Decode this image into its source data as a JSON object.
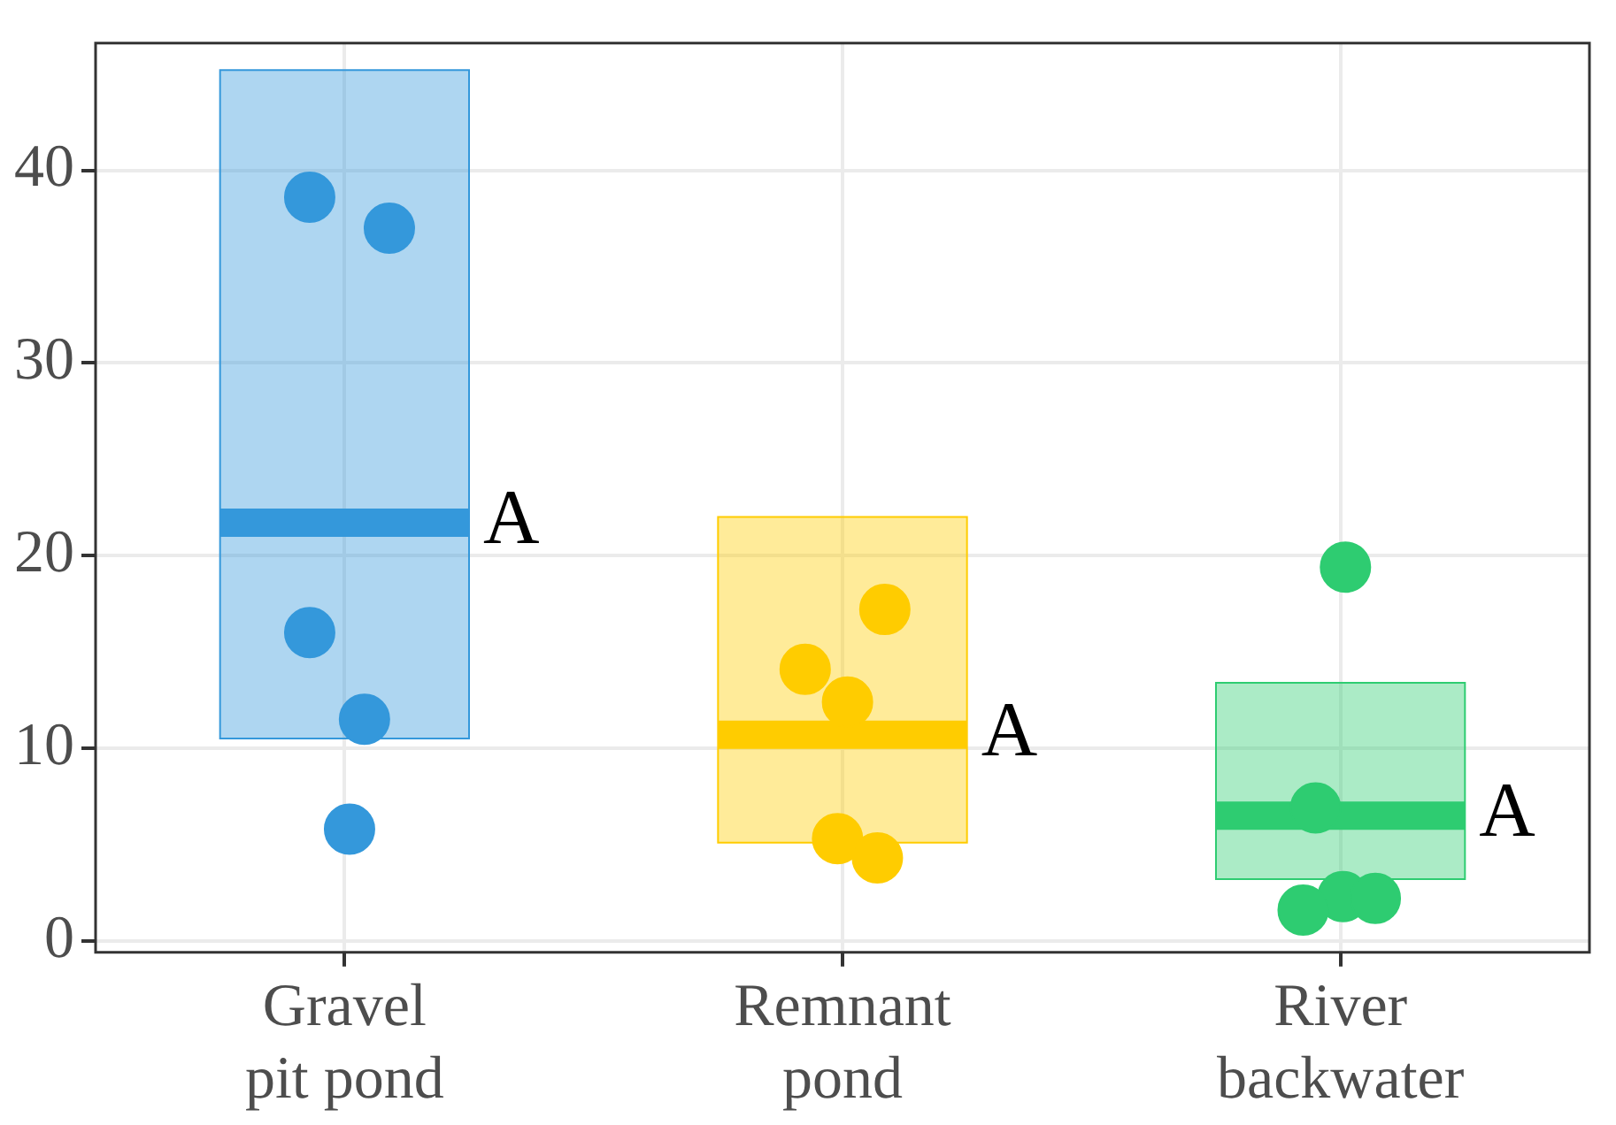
{
  "chart_data": {
    "type": "box",
    "categories": [
      "Gravel pit pond",
      "Remnant pond",
      "River backwater"
    ],
    "boxes": [
      {
        "low": 10.5,
        "q1": 10.5,
        "median": 21.7,
        "q3": 45.2,
        "high": 45.2
      },
      {
        "low": 5.1,
        "q1": 5.1,
        "median": 10.7,
        "q3": 22.0,
        "high": 22.0
      },
      {
        "low": 3.2,
        "q1": 3.2,
        "median": 6.5,
        "q3": 13.4,
        "high": 13.4
      }
    ],
    "colors": [
      "#3498db",
      "#ffcc00",
      "#2ecc71"
    ],
    "series": [
      {
        "type": "scatter",
        "x": [
          "Gravel pit pond",
          "Gravel pit pond",
          "Gravel pit pond",
          "Gravel pit pond",
          "Gravel pit pond",
          "Remnant pond",
          "Remnant pond",
          "Remnant pond",
          "Remnant pond",
          "Remnant pond",
          "River backwater",
          "River backwater",
          "River backwater",
          "River backwater",
          "River backwater"
        ],
        "values": [
          38.6,
          37.0,
          16.0,
          11.5,
          5.8,
          17.2,
          14.1,
          12.4,
          5.3,
          4.3,
          19.4,
          6.9,
          2.3,
          2.2,
          1.6
        ],
        "colors": [
          "#3498db",
          "#3498db",
          "#3498db",
          "#3498db",
          "#3498db",
          "#ffcc00",
          "#ffcc00",
          "#ffcc00",
          "#ffcc00",
          "#ffcc00",
          "#2ecc71",
          "#2ecc71",
          "#2ecc71",
          "#2ecc71",
          "#2ecc71"
        ]
      }
    ],
    "annotations": [
      {
        "text": "A",
        "x": "Gravel pit pond",
        "y": 21.7
      },
      {
        "text": "A",
        "x": "Remnant pond",
        "y": 10.7
      },
      {
        "text": "A",
        "x": "River backwater",
        "y": 6.5
      }
    ],
    "ylim": [
      -0.6,
      46.6
    ],
    "yticks": [
      0,
      10,
      20,
      30,
      40
    ],
    "grid": true,
    "legend": false,
    "marker": "circle"
  }
}
